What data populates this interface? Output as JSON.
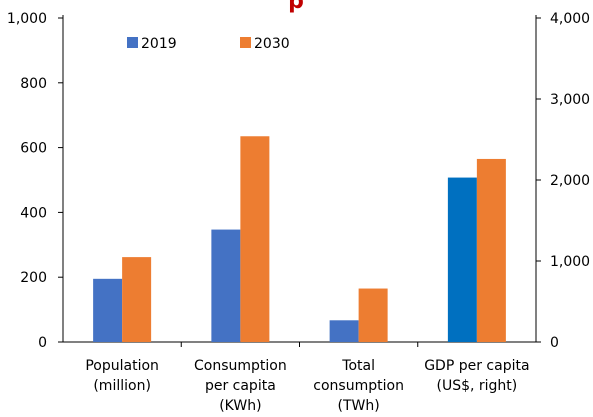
{
  "chart_data": {
    "type": "bar",
    "title_fragment": "p",
    "title_color": "#c00000",
    "categories": [
      [
        "Population",
        "(million)"
      ],
      [
        "Consumption",
        "per capita",
        "(KWh)"
      ],
      [
        "Total",
        "consumption",
        "(TWh)"
      ],
      [
        "GDP per capita",
        "(US$, right)"
      ]
    ],
    "series": [
      {
        "name": "2019",
        "color": "#4472c4",
        "values": [
          195,
          347,
          67,
          2030
        ],
        "axis": [
          "left",
          "left",
          "left",
          "right"
        ],
        "override_colors": [
          null,
          null,
          null,
          "#0070c0"
        ]
      },
      {
        "name": "2030",
        "color": "#ed7d31",
        "values": [
          262,
          635,
          165,
          2260
        ],
        "axis": [
          "left",
          "left",
          "left",
          "right"
        ],
        "override_colors": [
          null,
          null,
          null,
          null
        ]
      }
    ],
    "y_left": {
      "ylim": [
        0,
        1000
      ],
      "ticks": [
        0,
        200,
        400,
        600,
        800,
        1000
      ],
      "tick_labels": [
        "0",
        "200",
        "400",
        "600",
        "800",
        "1,000"
      ]
    },
    "y_right": {
      "ylim": [
        0,
        4000
      ],
      "ticks": [
        0,
        1000,
        2000,
        3000,
        4000
      ],
      "tick_labels": [
        "0",
        "1,000",
        "2,000",
        "3,000",
        "4,000"
      ]
    },
    "legend_placement": "top-left, inside plot",
    "grid": false
  }
}
